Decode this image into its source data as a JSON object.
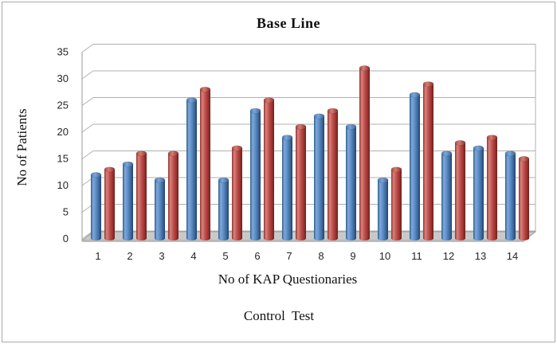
{
  "figure": {
    "title": "Base Line",
    "y_axis_title": "No of Patients",
    "x_axis_title": "No of KAP Questionaries",
    "caption": "Control  Test"
  },
  "chart_data": {
    "type": "bar",
    "style": "3d-cylinder-column",
    "title": "Base Line",
    "xlabel": "No of KAP Questionaries",
    "ylabel": "No of Patients",
    "categories": [
      "1",
      "2",
      "3",
      "4",
      "5",
      "6",
      "7",
      "8",
      "9",
      "10",
      "11",
      "12",
      "13",
      "14"
    ],
    "series": [
      {
        "name": "Control",
        "color": "#4F81BD",
        "values": [
          12,
          14,
          11,
          26,
          11,
          24,
          19,
          23,
          21,
          11,
          27,
          16,
          17,
          16
        ]
      },
      {
        "name": "Test",
        "color": "#C0504D",
        "values": [
          13,
          16,
          16,
          28,
          17,
          26,
          21,
          24,
          32,
          13,
          29,
          18,
          19,
          15
        ]
      }
    ],
    "ylim": [
      0,
      35
    ],
    "yticks": [
      0,
      5,
      10,
      15,
      20,
      25,
      30,
      35
    ],
    "grid": true,
    "legend": "none",
    "colors": {
      "gridline": "#b0b0b0",
      "axis": "#9a9a9a",
      "floor": "#c9c9c9",
      "floor_front": "#bdbdbd",
      "background": "#ffffff"
    }
  }
}
